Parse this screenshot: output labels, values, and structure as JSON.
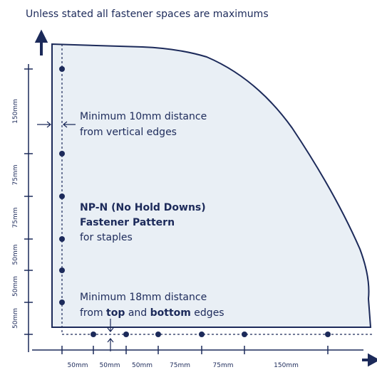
{
  "header": {
    "text": "Unless stated all fastener spaces are maximums"
  },
  "left_spacings": [
    "150mm",
    "75mm",
    "75mm",
    "50mm",
    "50mm",
    "50mm"
  ],
  "bottom_spacings": [
    "50mm",
    "50mm",
    "50mm",
    "75mm",
    "75mm",
    "150mm"
  ],
  "note_vertical": {
    "lines": [
      "Minimum 10mm distance",
      "from vertical edges"
    ]
  },
  "pattern": {
    "name": "NP-N (No Hold Downs)",
    "subtitle": "Fastener Pattern",
    "detail": "for staples"
  },
  "note_edges": {
    "line1": "Minimum 18mm distance",
    "line2": [
      "from ",
      "top",
      " and ",
      "bottom",
      " edges"
    ]
  }
}
